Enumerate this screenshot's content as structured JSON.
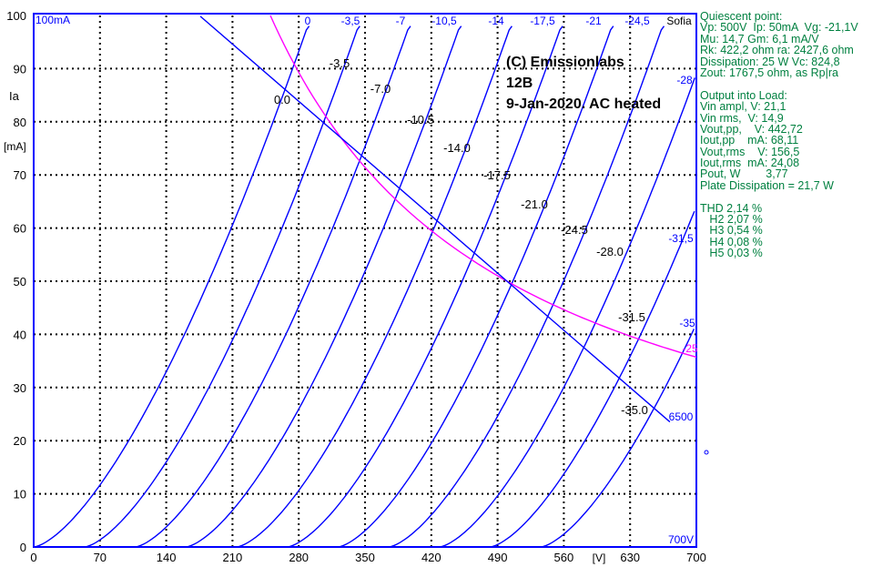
{
  "chart_data": {
    "type": "line",
    "title_lines": [
      "(C) Emissionlabs",
      "12B",
      "9-Jan-2020.  AC heated"
    ],
    "corner_label": "Sofia",
    "top_left_label": "100mA",
    "ylabel": [
      "Ia",
      "[mA]"
    ],
    "xlabel": "[V]",
    "xlim": [
      0,
      700
    ],
    "ylim": [
      0,
      100
    ],
    "x_ticks": [
      0,
      70,
      140,
      210,
      280,
      350,
      420,
      490,
      560,
      630,
      700
    ],
    "y_ticks": [
      0,
      10,
      20,
      30,
      40,
      50,
      60,
      70,
      80,
      90,
      100
    ],
    "grid": true,
    "series": [
      {
        "grid_voltage": 0,
        "top_label": "0",
        "curve_label": "0.0"
      },
      {
        "grid_voltage": -3.5,
        "top_label": "-3,5",
        "curve_label": "-3.5"
      },
      {
        "grid_voltage": -7,
        "top_label": "-7",
        "curve_label": "-7.0"
      },
      {
        "grid_voltage": -10.5,
        "top_label": "-10,5",
        "curve_label": "-10.5"
      },
      {
        "grid_voltage": -14,
        "top_label": "-14",
        "curve_label": "-14.0"
      },
      {
        "grid_voltage": -17.5,
        "top_label": "-17,5",
        "curve_label": "-17.5"
      },
      {
        "grid_voltage": -21,
        "top_label": "-21",
        "curve_label": "-21.0"
      },
      {
        "grid_voltage": -24.5,
        "top_label": "-24,5",
        "curve_label": "-24.5"
      },
      {
        "grid_voltage": -28,
        "top_label": "-28",
        "curve_label": "-28.0"
      },
      {
        "grid_voltage": -31.5,
        "top_label": "-31,5",
        "curve_label": "-31.5"
      },
      {
        "grid_voltage": -35,
        "top_label": "-35",
        "curve_label": "-35.0"
      }
    ],
    "load_line": {
      "ohm": 6500,
      "label": "6500",
      "quiescent": {
        "x": 500,
        "y": 50
      }
    },
    "dissipation_curve": {
      "watts": 25,
      "label": "-25"
    },
    "x_end_label": "700V",
    "colors": {
      "curves": "#0000ff",
      "dissipation": "#ff00ff",
      "panel_text": "#008040",
      "labels": "#000000"
    }
  },
  "panel": {
    "lines": [
      "Quiescent point:",
      "Vp: 500V  Ip: 50mA  Vg: -21,1V",
      "Mu: 14,7 Gm: 6,1 mA/V",
      "Rk: 422,2 ohm ra: 2427,6 ohm",
      "Dissipation: 25 W Vc: 824,8",
      "Zout: 1767,5 ohm, as Rp|ra",
      "",
      "Output into Load:",
      "Vin ampl, V: 21,1",
      "Vin rms,  V: 14,9",
      "Vout,pp,    V: 442,72",
      "Iout,pp    mA: 68,11",
      "Vout,rms    V: 156,5",
      "Iout,rms  mA: 24,08",
      "Pout, W        3,77",
      "Plate Dissipation = 21,7 W",
      "",
      "THD 2,14 %",
      "   H2 2,07 %",
      "   H3 0,54 %",
      "   H4 0,08 %",
      "   H5 0,03 %"
    ]
  }
}
